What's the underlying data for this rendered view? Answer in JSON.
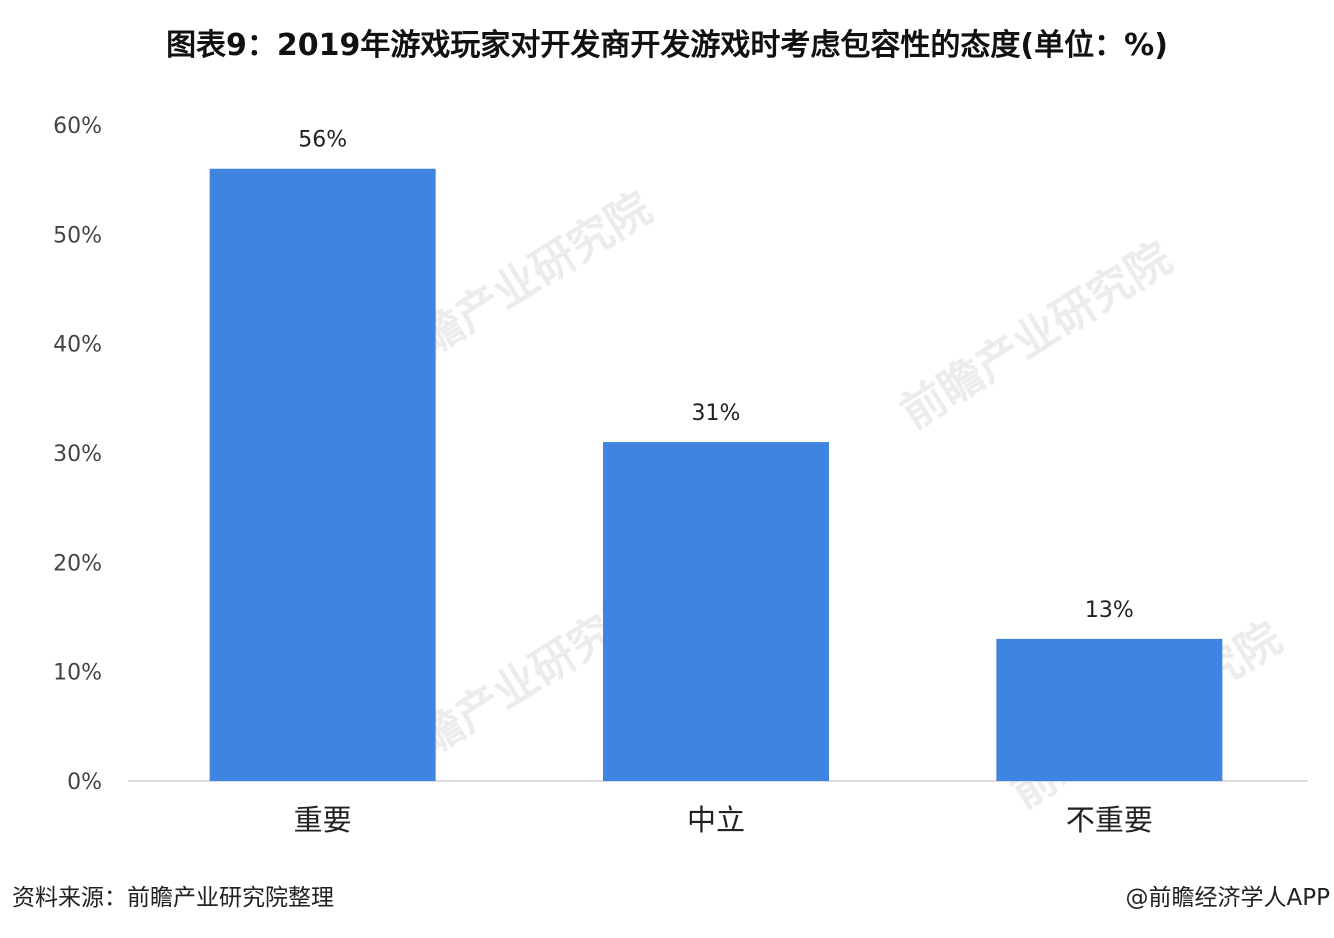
{
  "title": "图表9：2019年游戏玩家对开发商开发游戏时考虑包容性的态度(单位：%)",
  "watermark_text": "前瞻产业研究院",
  "chart_data": {
    "type": "bar",
    "categories": [
      "重要",
      "中立",
      "不重要"
    ],
    "values": [
      56,
      31,
      13
    ],
    "data_labels": [
      "56%",
      "31%",
      "13%"
    ],
    "y_ticks": [
      "0%",
      "10%",
      "20%",
      "30%",
      "40%",
      "50%",
      "60%"
    ],
    "ylim": [
      0,
      60
    ],
    "xlabel": "",
    "ylabel": "",
    "grid": false,
    "bar_color": "#3f84e0"
  },
  "footer": {
    "source": "资料来源：前瞻产业研究院整理",
    "credit": "@前瞻经济学人APP"
  }
}
